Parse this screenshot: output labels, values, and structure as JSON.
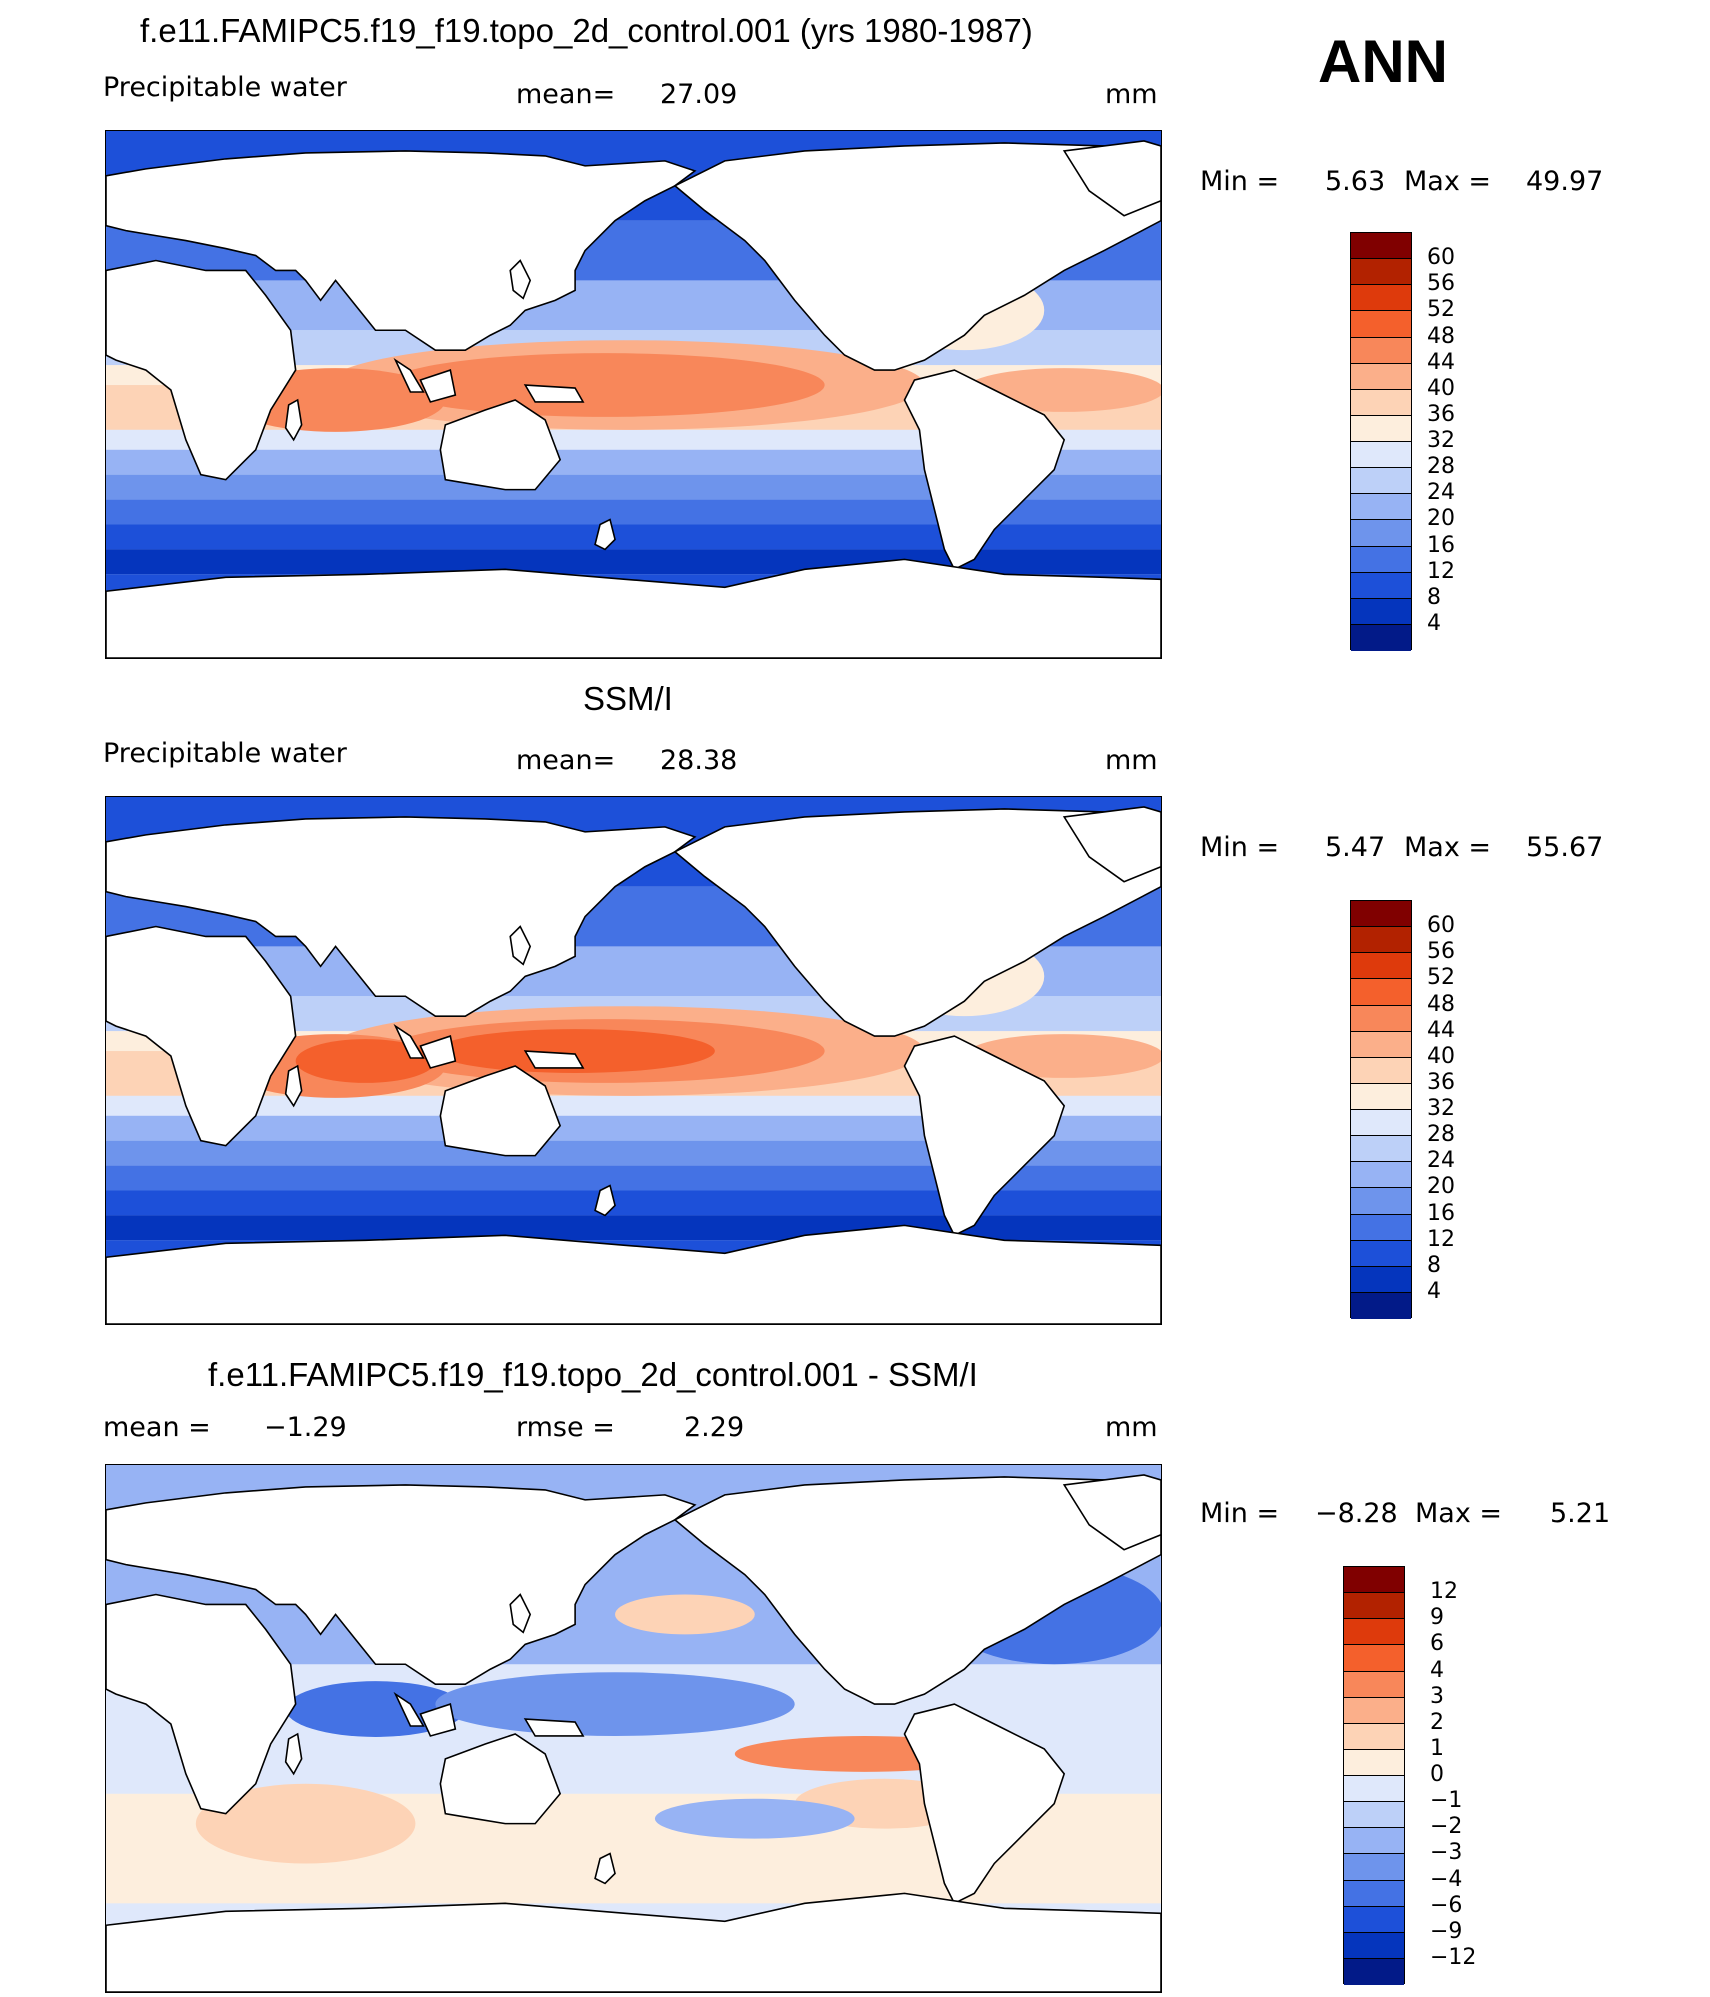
{
  "header": {
    "season": "ANN"
  },
  "panels": [
    {
      "id": "model",
      "title": "f.e11.FAMIPC5.f19_f19.topo_2d_control.001 (yrs 1980-1987)",
      "left_label": "Precipitable water",
      "stat_label": "mean=",
      "stat_value": "27.09",
      "stat2_label": "",
      "stat2_value": "",
      "units": "mm",
      "min_label": "Min =",
      "min_value": "5.63",
      "max_label": "Max =",
      "max_value": "49.97",
      "colorbar_ticks": [
        "60",
        "56",
        "52",
        "48",
        "44",
        "40",
        "36",
        "32",
        "28",
        "24",
        "20",
        "16",
        "12",
        "8",
        "4"
      ]
    },
    {
      "id": "obs",
      "title": "SSM/I",
      "left_label": "Precipitable water",
      "stat_label": "mean=",
      "stat_value": "28.38",
      "stat2_label": "",
      "stat2_value": "",
      "units": "mm",
      "min_label": "Min =",
      "min_value": "5.47",
      "max_label": "Max =",
      "max_value": "55.67",
      "colorbar_ticks": [
        "60",
        "56",
        "52",
        "48",
        "44",
        "40",
        "36",
        "32",
        "28",
        "24",
        "20",
        "16",
        "12",
        "8",
        "4"
      ]
    },
    {
      "id": "diff",
      "title": "f.e11.FAMIPC5.f19_f19.topo_2d_control.001 - SSM/I",
      "left_label": "",
      "stat_label": "mean =",
      "stat_value": "−1.29",
      "stat2_label": "rmse =",
      "stat2_value": "2.29",
      "units": "mm",
      "min_label": "Min =",
      "min_value": "−8.28",
      "max_label": "Max =",
      "max_value": "5.21",
      "colorbar_ticks": [
        "12",
        "9",
        "6",
        "4",
        "3",
        "2",
        "1",
        "0",
        "−1",
        "−2",
        "−3",
        "−4",
        "−6",
        "−9",
        "−12"
      ]
    }
  ],
  "colors": {
    "abs_scale": [
      "#800000",
      "#b22200",
      "#de3a0c",
      "#f4602c",
      "#f8875a",
      "#fbaf8a",
      "#fdd3b6",
      "#fdeedd",
      "#dfe8fb",
      "#bdd0f8",
      "#97b3f4",
      "#6e94ec",
      "#4472e4",
      "#1d50d9",
      "#0535bd",
      "#021a88"
    ],
    "diff_scale": [
      "#800000",
      "#b22200",
      "#de3a0c",
      "#f4602c",
      "#f8875a",
      "#fbaf8a",
      "#fdd3b6",
      "#fdeedd",
      "#dfe8fb",
      "#bdd0f8",
      "#97b3f4",
      "#6e94ec",
      "#4472e4",
      "#1d50d9",
      "#0535bd",
      "#021a88"
    ],
    "land": "#ffffff",
    "coast": "#000000"
  }
}
